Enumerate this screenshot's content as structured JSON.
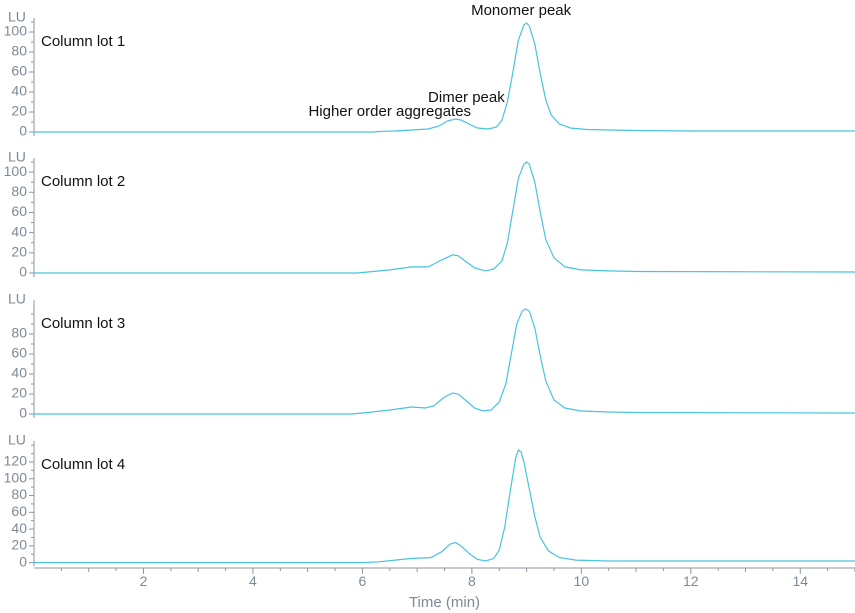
{
  "chart_data": {
    "type": "line",
    "xlabel": "Time (min)",
    "x_ticks": [
      2,
      4,
      6,
      8,
      10,
      12,
      14
    ],
    "xlim": [
      0,
      15
    ],
    "y_unit": "LU",
    "line_color": "#49c3df",
    "axis_color": "#8b96a0",
    "annotations": [
      {
        "text": "Monomer peak",
        "panel": 0,
        "x": 8.9,
        "y": 117
      },
      {
        "text": "Dimer peak",
        "panel": 0,
        "x": 7.9,
        "y": 30
      },
      {
        "text": "Higher order aggregates",
        "panel": 0,
        "x": 6.5,
        "y": 16
      }
    ],
    "panels": [
      {
        "name": "Column lot 1",
        "ylim": [
          -4,
          114
        ],
        "y_ticks": [
          0,
          20,
          40,
          60,
          80,
          100
        ],
        "points": [
          [
            0,
            0
          ],
          [
            6.2,
            0
          ],
          [
            6.3,
            0.5
          ],
          [
            6.6,
            1
          ],
          [
            6.9,
            2
          ],
          [
            7.2,
            3
          ],
          [
            7.4,
            6
          ],
          [
            7.55,
            11
          ],
          [
            7.7,
            13
          ],
          [
            7.8,
            12
          ],
          [
            7.95,
            8
          ],
          [
            8.1,
            4
          ],
          [
            8.3,
            3
          ],
          [
            8.45,
            5
          ],
          [
            8.55,
            12
          ],
          [
            8.65,
            30
          ],
          [
            8.75,
            60
          ],
          [
            8.85,
            92
          ],
          [
            8.95,
            107
          ],
          [
            9.0,
            109
          ],
          [
            9.05,
            106
          ],
          [
            9.15,
            88
          ],
          [
            9.25,
            58
          ],
          [
            9.35,
            32
          ],
          [
            9.45,
            17
          ],
          [
            9.6,
            8
          ],
          [
            9.8,
            4
          ],
          [
            10.1,
            2.5
          ],
          [
            10.5,
            2
          ],
          [
            11,
            1.5
          ],
          [
            12,
            1
          ],
          [
            15,
            1
          ]
        ]
      },
      {
        "name": "Column lot 2",
        "ylim": [
          -4,
          114
        ],
        "y_ticks": [
          0,
          20,
          40,
          60,
          80,
          100
        ],
        "points": [
          [
            0,
            0
          ],
          [
            5.9,
            0
          ],
          [
            6.1,
            1
          ],
          [
            6.5,
            3
          ],
          [
            6.9,
            6
          ],
          [
            7.2,
            6
          ],
          [
            7.45,
            13
          ],
          [
            7.65,
            18
          ],
          [
            7.75,
            17
          ],
          [
            7.9,
            11
          ],
          [
            8.05,
            5
          ],
          [
            8.25,
            2
          ],
          [
            8.4,
            4
          ],
          [
            8.55,
            12
          ],
          [
            8.65,
            30
          ],
          [
            8.75,
            62
          ],
          [
            8.85,
            94
          ],
          [
            8.95,
            108
          ],
          [
            9.0,
            110
          ],
          [
            9.05,
            108
          ],
          [
            9.15,
            90
          ],
          [
            9.25,
            60
          ],
          [
            9.35,
            33
          ],
          [
            9.5,
            15
          ],
          [
            9.7,
            6
          ],
          [
            10,
            3
          ],
          [
            10.5,
            2
          ],
          [
            11,
            1.5
          ],
          [
            15,
            1
          ]
        ]
      },
      {
        "name": "Column lot 3",
        "ylim": [
          -4,
          114
        ],
        "y_ticks": [
          0,
          20,
          40,
          60,
          80
        ],
        "points": [
          [
            0,
            0
          ],
          [
            5.8,
            0
          ],
          [
            6.1,
            1.5
          ],
          [
            6.5,
            4
          ],
          [
            6.9,
            7
          ],
          [
            7.15,
            6
          ],
          [
            7.3,
            8
          ],
          [
            7.5,
            17
          ],
          [
            7.65,
            21
          ],
          [
            7.75,
            20
          ],
          [
            7.9,
            13
          ],
          [
            8.05,
            6
          ],
          [
            8.2,
            3
          ],
          [
            8.35,
            4
          ],
          [
            8.5,
            12
          ],
          [
            8.62,
            30
          ],
          [
            8.72,
            60
          ],
          [
            8.82,
            90
          ],
          [
            8.92,
            103
          ],
          [
            8.98,
            105
          ],
          [
            9.05,
            103
          ],
          [
            9.15,
            86
          ],
          [
            9.25,
            58
          ],
          [
            9.35,
            33
          ],
          [
            9.5,
            14
          ],
          [
            9.7,
            6
          ],
          [
            10,
            3
          ],
          [
            10.5,
            2
          ],
          [
            11,
            1.5
          ],
          [
            15,
            1
          ]
        ]
      },
      {
        "name": "Column lot 4",
        "ylim": [
          -4,
          145
        ],
        "y_ticks": [
          0,
          20,
          40,
          60,
          80,
          100,
          120
        ],
        "points": [
          [
            0,
            0
          ],
          [
            6.0,
            0
          ],
          [
            6.3,
            1
          ],
          [
            6.6,
            3
          ],
          [
            6.9,
            5
          ],
          [
            7.25,
            6
          ],
          [
            7.45,
            13
          ],
          [
            7.6,
            22
          ],
          [
            7.7,
            24
          ],
          [
            7.8,
            20
          ],
          [
            7.95,
            11
          ],
          [
            8.1,
            4
          ],
          [
            8.25,
            2
          ],
          [
            8.4,
            5
          ],
          [
            8.5,
            15
          ],
          [
            8.6,
            42
          ],
          [
            8.7,
            85
          ],
          [
            8.8,
            125
          ],
          [
            8.85,
            134
          ],
          [
            8.9,
            132
          ],
          [
            8.95,
            120
          ],
          [
            9.05,
            88
          ],
          [
            9.15,
            55
          ],
          [
            9.25,
            30
          ],
          [
            9.4,
            14
          ],
          [
            9.6,
            6
          ],
          [
            9.9,
            3
          ],
          [
            10.5,
            2
          ],
          [
            15,
            2
          ]
        ]
      }
    ]
  }
}
